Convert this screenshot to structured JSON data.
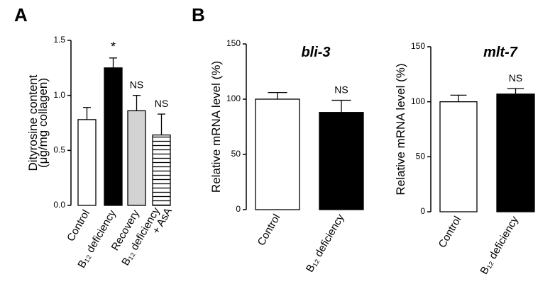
{
  "chart_data": [
    {
      "type": "bar",
      "panel_label": "A",
      "ylabel": [
        "Dityrosine content",
        "(μg/mg collagen)"
      ],
      "categories": [
        "Control",
        "B₁₂ deficiency",
        "Recovery",
        [
          "B₁₂ deficiency",
          "+ AsA"
        ]
      ],
      "values": [
        0.78,
        1.25,
        0.86,
        0.64
      ],
      "errors": [
        0.11,
        0.09,
        0.14,
        0.19
      ],
      "annotations": [
        null,
        "*",
        "NS",
        "NS"
      ],
      "colors": [
        "#ffffff",
        "#000000",
        "#d3d3d3",
        "#ffffff"
      ],
      "hatch": [
        false,
        false,
        false,
        true
      ],
      "ylim": [
        0,
        1.5
      ],
      "yticks": [
        {
          "value": 0,
          "label": "0.0"
        },
        {
          "value": 0.5,
          "label": "0.5"
        },
        {
          "value": 1,
          "label": "1.0"
        },
        {
          "value": 1.5,
          "label": "1.5"
        }
      ]
    },
    {
      "type": "bar",
      "panel_label": "B",
      "title": "bli-3",
      "ylabel": [
        "Relative mRNA level (%)"
      ],
      "categories": [
        "Control",
        "B₁₂ deficiency"
      ],
      "values": [
        100,
        88
      ],
      "errors": [
        6,
        11
      ],
      "annotations": [
        null,
        "NS"
      ],
      "colors": [
        "#ffffff",
        "#000000"
      ],
      "hatch": [
        false,
        false
      ],
      "ylim": [
        0,
        150
      ],
      "yticks": [
        0,
        50,
        100,
        150
      ]
    },
    {
      "type": "bar",
      "title": "mlt-7",
      "ylabel": [
        "Relative mRNA level (%)"
      ],
      "categories": [
        "Control",
        "B₁₂ deficiency"
      ],
      "values": [
        100,
        107
      ],
      "errors": [
        6,
        5
      ],
      "annotations": [
        null,
        "NS"
      ],
      "colors": [
        "#ffffff",
        "#000000"
      ],
      "hatch": [
        false,
        false
      ],
      "ylim": [
        0,
        150
      ],
      "yticks": [
        0,
        50,
        100,
        150
      ]
    }
  ]
}
